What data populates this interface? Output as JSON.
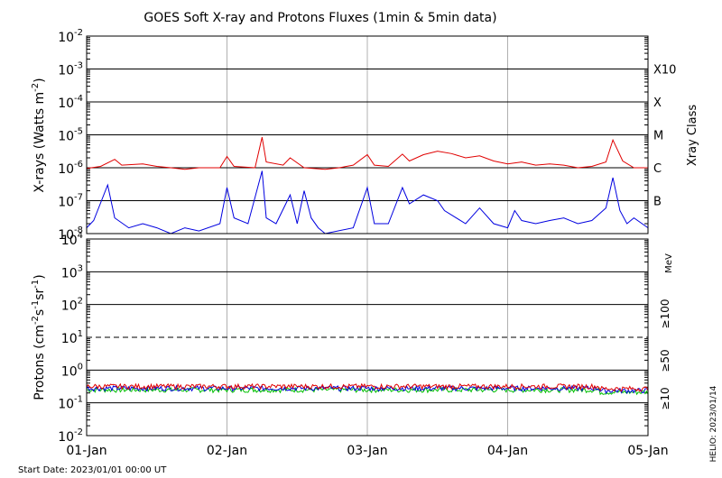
{
  "title": "GOES Soft X-ray and Protons Fluxes   (1min & 5min data)",
  "start_date": "Start Date: 2023/01/01 00:00 UT",
  "stamp": "HELIO: 2023/01/14",
  "x_tick_labels": [
    "01-Jan",
    "02-Jan",
    "03-Jan",
    "04-Jan",
    "05-Jan"
  ],
  "chart_data": [
    {
      "type": "line",
      "title": "GOES Soft X-ray and Protons Fluxes   (1min & 5min data)",
      "xlabel": "",
      "ylabel_main": "X-rays (Watts m",
      "ylabel_sup": "-2",
      "ylabel_end": ")",
      "y_scale": "log",
      "ylim": [
        1e-08,
        0.01
      ],
      "xlim_days": [
        0,
        4
      ],
      "y_ticks": [
        {
          "base": "10",
          "exp": "-8"
        },
        {
          "base": "10",
          "exp": "-7"
        },
        {
          "base": "10",
          "exp": "-6"
        },
        {
          "base": "10",
          "exp": "-5"
        },
        {
          "base": "10",
          "exp": "-4"
        },
        {
          "base": "10",
          "exp": "-3"
        },
        {
          "base": "10",
          "exp": "-2"
        }
      ],
      "class_axis_label": "Xray Class",
      "classes": [
        {
          "label": "B",
          "value": 1e-07
        },
        {
          "label": "C",
          "value": 1e-06
        },
        {
          "label": "M",
          "value": 1e-05
        },
        {
          "label": "X",
          "value": 0.0001
        },
        {
          "label": "X10",
          "value": 0.001
        }
      ],
      "grid": true,
      "series": [
        {
          "color": "#e00000",
          "points": [
            [
              0.0,
              9.5e-07
            ],
            [
              0.1,
              1.1e-06
            ],
            [
              0.2,
              1.8e-06
            ],
            [
              0.25,
              1.2e-06
            ],
            [
              0.4,
              1.3e-06
            ],
            [
              0.5,
              1.1e-06
            ],
            [
              0.6,
              1e-06
            ],
            [
              0.7,
              9e-07
            ],
            [
              0.8,
              1e-06
            ],
            [
              0.95,
              1e-06
            ],
            [
              1.0,
              2.2e-06
            ],
            [
              1.05,
              1.1e-06
            ],
            [
              1.2,
              1e-06
            ],
            [
              1.25,
              8.5e-06
            ],
            [
              1.28,
              1.5e-06
            ],
            [
              1.4,
              1.2e-06
            ],
            [
              1.45,
              2e-06
            ],
            [
              1.55,
              1e-06
            ],
            [
              1.7,
              9e-07
            ],
            [
              1.8,
              1e-06
            ],
            [
              1.9,
              1.2e-06
            ],
            [
              2.0,
              2.5e-06
            ],
            [
              2.05,
              1.2e-06
            ],
            [
              2.15,
              1.1e-06
            ],
            [
              2.25,
              2.6e-06
            ],
            [
              2.3,
              1.6e-06
            ],
            [
              2.4,
              2.5e-06
            ],
            [
              2.5,
              3.2e-06
            ],
            [
              2.6,
              2.7e-06
            ],
            [
              2.7,
              2e-06
            ],
            [
              2.8,
              2.3e-06
            ],
            [
              2.9,
              1.6e-06
            ],
            [
              3.0,
              1.3e-06
            ],
            [
              3.1,
              1.5e-06
            ],
            [
              3.2,
              1.2e-06
            ],
            [
              3.3,
              1.3e-06
            ],
            [
              3.4,
              1.2e-06
            ],
            [
              3.5,
              1e-06
            ],
            [
              3.6,
              1.1e-06
            ],
            [
              3.7,
              1.5e-06
            ],
            [
              3.75,
              7e-06
            ],
            [
              3.82,
              1.6e-06
            ],
            [
              3.9,
              1e-06
            ],
            [
              4.0,
              1e-06
            ]
          ]
        },
        {
          "color": "#0000e0",
          "points": [
            [
              0.0,
              1.5e-08
            ],
            [
              0.05,
              2.5e-08
            ],
            [
              0.15,
              3e-07
            ],
            [
              0.2,
              3e-08
            ],
            [
              0.3,
              1.5e-08
            ],
            [
              0.4,
              2e-08
            ],
            [
              0.5,
              1.5e-08
            ],
            [
              0.6,
              1e-08
            ],
            [
              0.7,
              1.5e-08
            ],
            [
              0.8,
              1.2e-08
            ],
            [
              0.95,
              2e-08
            ],
            [
              1.0,
              2.5e-07
            ],
            [
              1.05,
              3e-08
            ],
            [
              1.15,
              2e-08
            ],
            [
              1.25,
              8e-07
            ],
            [
              1.28,
              3e-08
            ],
            [
              1.35,
              2e-08
            ],
            [
              1.45,
              1.5e-07
            ],
            [
              1.5,
              2e-08
            ],
            [
              1.55,
              2e-07
            ],
            [
              1.6,
              3e-08
            ],
            [
              1.65,
              1.5e-08
            ],
            [
              1.7,
              1e-08
            ],
            [
              1.9,
              1.5e-08
            ],
            [
              2.0,
              2.5e-07
            ],
            [
              2.05,
              2e-08
            ],
            [
              2.15,
              2e-08
            ],
            [
              2.25,
              2.5e-07
            ],
            [
              2.3,
              8e-08
            ],
            [
              2.4,
              1.5e-07
            ],
            [
              2.5,
              1e-07
            ],
            [
              2.55,
              5e-08
            ],
            [
              2.7,
              2e-08
            ],
            [
              2.8,
              6e-08
            ],
            [
              2.9,
              2e-08
            ],
            [
              3.0,
              1.5e-08
            ],
            [
              3.05,
              5e-08
            ],
            [
              3.1,
              2.5e-08
            ],
            [
              3.2,
              2e-08
            ],
            [
              3.3,
              2.5e-08
            ],
            [
              3.4,
              3e-08
            ],
            [
              3.5,
              2e-08
            ],
            [
              3.6,
              2.5e-08
            ],
            [
              3.7,
              6e-08
            ],
            [
              3.75,
              5e-07
            ],
            [
              3.8,
              5e-08
            ],
            [
              3.85,
              2e-08
            ],
            [
              3.9,
              3e-08
            ],
            [
              4.0,
              1.5e-08
            ]
          ]
        }
      ]
    },
    {
      "type": "line",
      "xlabel": "",
      "ylabel_main": "Protons (cm",
      "ylabel_sup1": "-2",
      "ylabel_mid1": "s",
      "ylabel_sup2": "-1",
      "ylabel_mid2": "sr",
      "ylabel_sup3": "-1",
      "ylabel_end": ")",
      "y_scale": "log",
      "ylim": [
        0.01,
        10000.0
      ],
      "xlim_days": [
        0,
        4
      ],
      "y_ticks": [
        {
          "base": "10",
          "exp": "-2"
        },
        {
          "base": "10",
          "exp": "-1"
        },
        {
          "base": "10",
          "exp": "0"
        },
        {
          "base": "10",
          "exp": "1"
        },
        {
          "base": "10",
          "exp": "2"
        },
        {
          "base": "10",
          "exp": "3"
        },
        {
          "base": "10",
          "exp": "4"
        }
      ],
      "threshold": 10,
      "unit": "MeV",
      "series": [
        {
          "name": "≥100",
          "color": "#00c000",
          "level": 0.25
        },
        {
          "name": "≥50",
          "color": "#0000e0",
          "level": 0.28
        },
        {
          "name": "≥10",
          "color": "#e00000",
          "level": 0.32
        }
      ]
    }
  ]
}
